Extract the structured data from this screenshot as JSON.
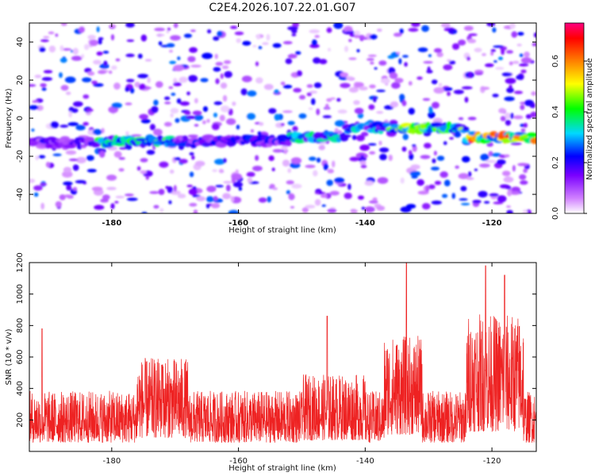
{
  "title": "C2E4.2026.107.22.01.G07",
  "chart_data": [
    {
      "type": "heatmap",
      "xlabel": "Height of straight line (km)",
      "ylabel": "Frequency (Hz)",
      "xlim": [
        -193,
        -113
      ],
      "ylim": [
        -50,
        50
      ],
      "xticks": [
        -180,
        -160,
        -140,
        -120
      ],
      "yticks": [
        -40,
        -20,
        0,
        20,
        40
      ],
      "colorbar": {
        "label": "Normalized spectral amplitude",
        "range": [
          0.0,
          0.75
        ],
        "ticks": [
          "0.0",
          "0.2",
          "0.4",
          "0.6"
        ],
        "tick_values": [
          0.0,
          0.2,
          0.4,
          0.6
        ],
        "colors": [
          "#ffffff",
          "#8a00ff",
          "#0000ff",
          "#00e5ff",
          "#00ff00",
          "#ffff00",
          "#ff8000",
          "#ff0000",
          "#ff0080"
        ]
      },
      "ridge_segments": [
        {
          "x_start": -193,
          "x_end": -182,
          "freq": -13,
          "amplitude": 0.2
        },
        {
          "x_start": -182,
          "x_end": -170,
          "freq": -12,
          "amplitude": 0.45
        },
        {
          "x_start": -170,
          "x_end": -152,
          "freq": -12,
          "amplitude": 0.25
        },
        {
          "x_start": -152,
          "x_end": -143,
          "freq": -10,
          "amplitude": 0.4
        },
        {
          "x_start": -143,
          "x_end": -136,
          "freq": -5,
          "amplitude": 0.35
        },
        {
          "x_start": -136,
          "x_end": -124,
          "freq": -5,
          "amplitude": 0.5
        },
        {
          "x_start": -124,
          "x_end": -113,
          "freq": -10,
          "amplitude": 0.7
        }
      ]
    },
    {
      "type": "line",
      "xlabel": "Height of straight line (km)",
      "ylabel": "SNR (10 * v/v)",
      "xlim": [
        -193,
        -113
      ],
      "ylim": [
        0,
        1200
      ],
      "xticks": [
        -180,
        -160,
        -140,
        -120
      ],
      "yticks": [
        200,
        400,
        600,
        800,
        1000,
        1200
      ],
      "color": "#ee2222",
      "approx_baseline": 220,
      "peaks": [
        {
          "x": -191,
          "y": 780
        },
        {
          "x": -172,
          "y": 550
        },
        {
          "x": -146,
          "y": 860
        },
        {
          "x": -133.5,
          "y": 1200
        },
        {
          "x": -121,
          "y": 1180
        },
        {
          "x": -118,
          "y": 1120
        }
      ]
    }
  ]
}
